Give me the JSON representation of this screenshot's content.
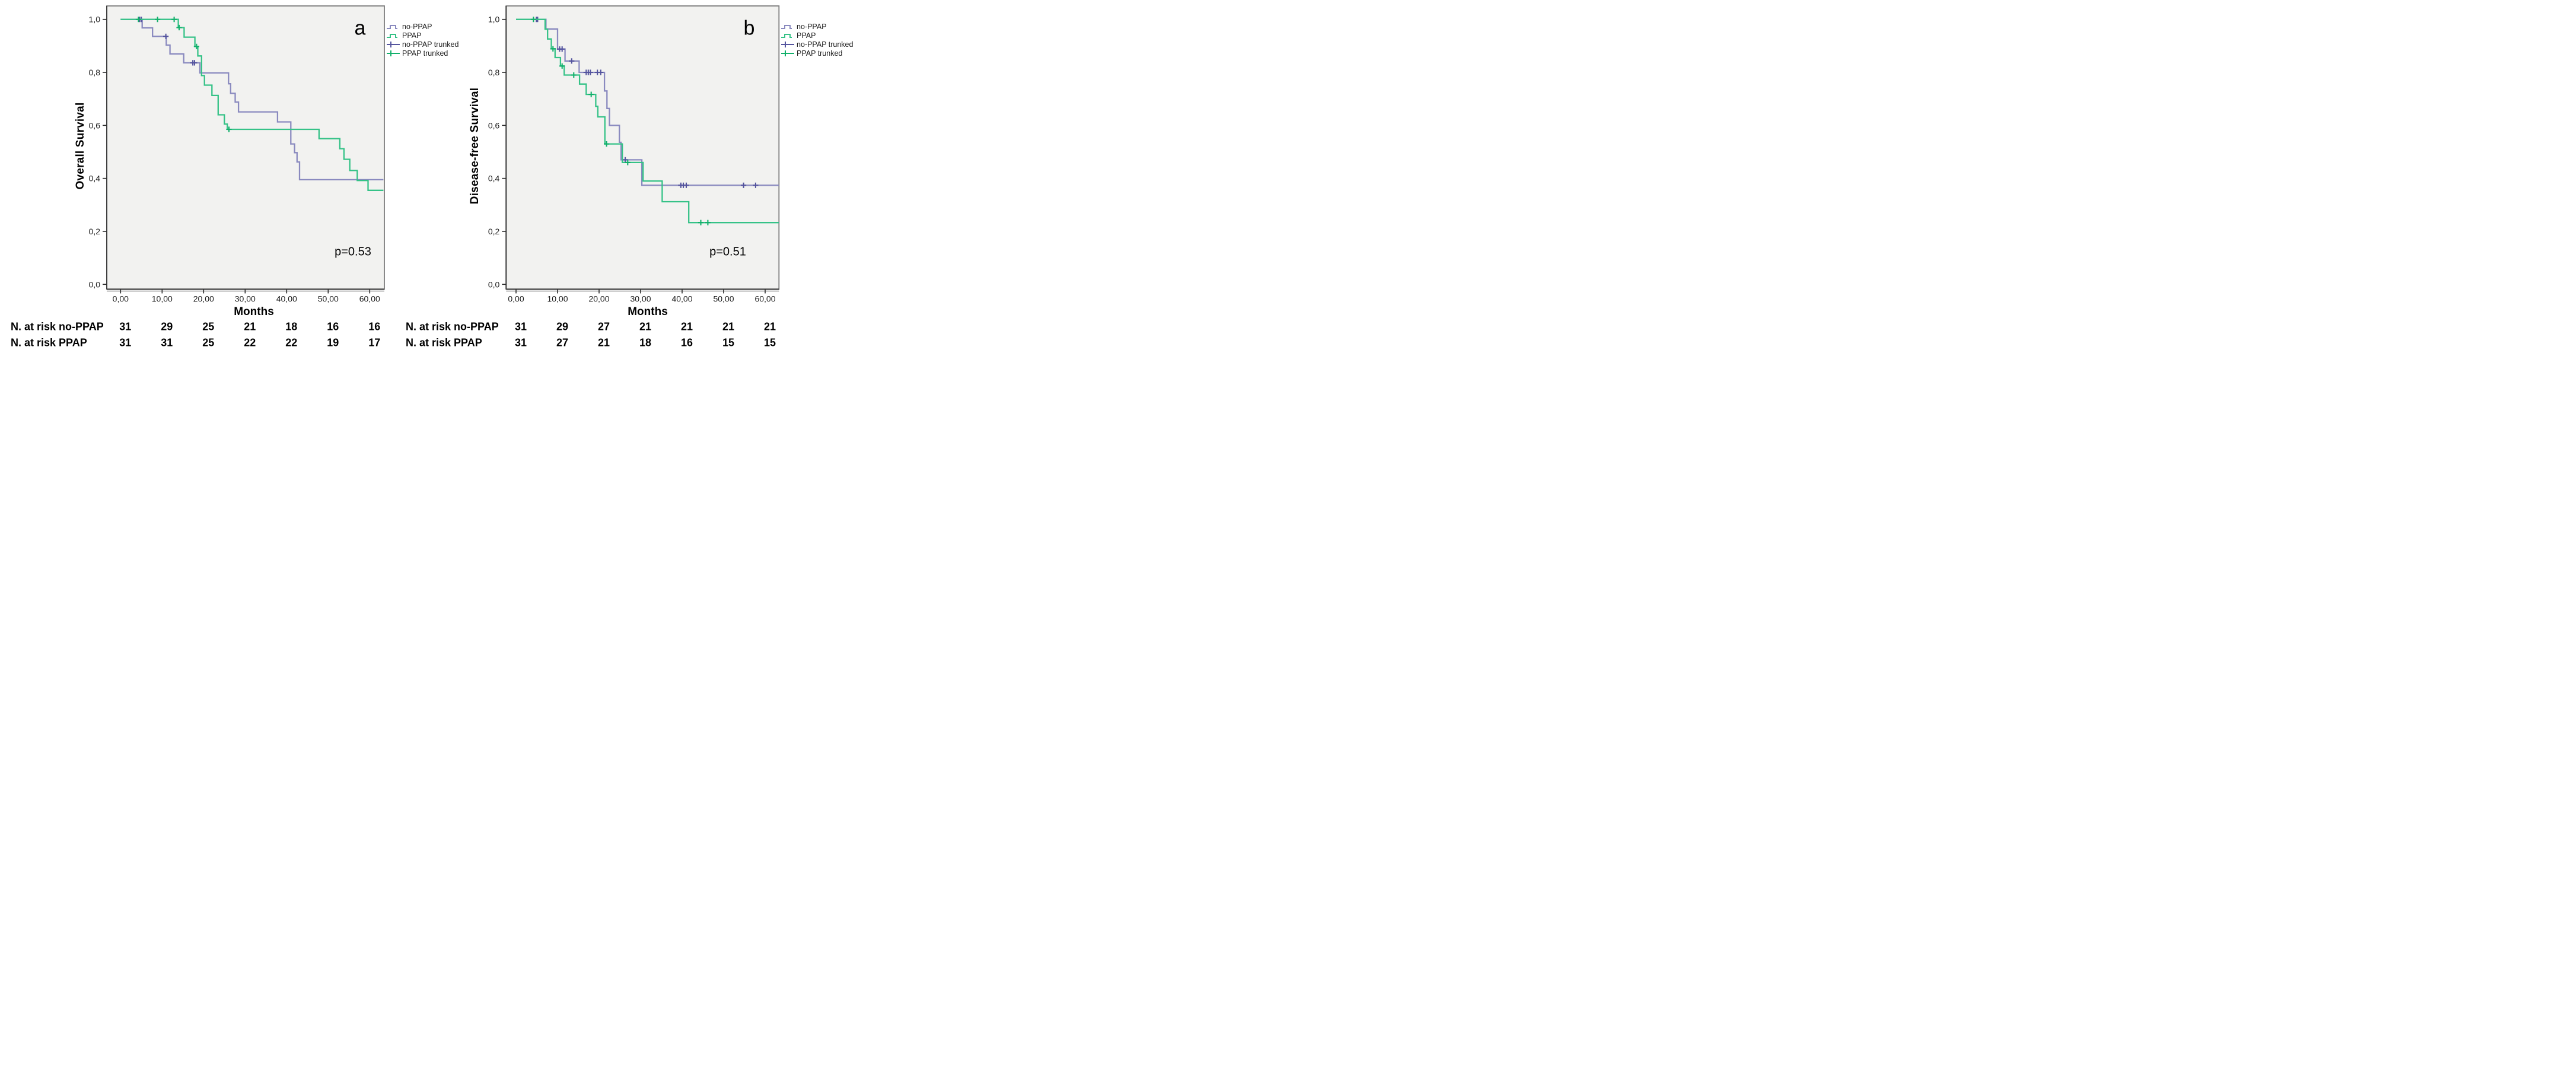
{
  "chart_data": {
    "type": "km_survival_step",
    "description": "Two Kaplan-Meier survival plots with censoring marks and number-at-risk tables",
    "x_axis": {
      "title": "Months",
      "tick_labels": [
        "0,00",
        "10,00",
        "20,00",
        "30,00",
        "40,00",
        "50,00",
        "60,00"
      ],
      "tick_values": [
        0,
        10,
        20,
        30,
        40,
        50,
        60
      ],
      "range": [
        0,
        63.3
      ]
    },
    "y_axis": {
      "tick_labels": [
        "1,0",
        "0,8",
        "0,6",
        "0,4",
        "0,2",
        "0,0"
      ],
      "tick_values": [
        1.0,
        0.8,
        0.6,
        0.4,
        0.2,
        0.0
      ],
      "range": [
        0,
        1.0
      ]
    },
    "colors": {
      "no_ppap": "#8A8ABF",
      "ppap": "#35C287",
      "no_ppap_censor": "#54549E",
      "ppap_censor": "#12B06B",
      "plot_bg": "#F2F2F0",
      "box_border": "#7C7C7C",
      "axis_dark": "#3F3F3F"
    },
    "legend": [
      {
        "label": "no-PPAP",
        "color_key": "no_ppap",
        "symbol": "step"
      },
      {
        "label": "PPAP",
        "color_key": "ppap",
        "symbol": "step"
      },
      {
        "label": "no-PPAP trunked",
        "color_key": "no_ppap_censor",
        "symbol": "plus"
      },
      {
        "label": "PPAP trunked",
        "color_key": "ppap_censor",
        "symbol": "plus"
      }
    ],
    "panels": [
      {
        "letter": "a",
        "y_title": "Overall Survival",
        "p_value": "p=0.53",
        "x_title": "Months",
        "series": [
          {
            "name": "no-PPAP",
            "color_key": "no_ppap",
            "censor_color_key": "no_ppap_censor",
            "steps": [
              [
                0,
                1
              ],
              [
                5.2,
                0.968
              ],
              [
                7.7,
                0.936
              ],
              [
                11.0,
                0.903
              ],
              [
                11.9,
                0.87
              ],
              [
                15.2,
                0.836
              ],
              [
                19.1,
                0.798
              ],
              [
                26.0,
                0.757
              ],
              [
                26.5,
                0.721
              ],
              [
                27.6,
                0.688
              ],
              [
                28.4,
                0.651
              ],
              [
                37.8,
                0.613
              ],
              [
                41.0,
                0.53
              ],
              [
                41.9,
                0.497
              ],
              [
                42.5,
                0.462
              ],
              [
                43.1,
                0.395
              ],
              [
                63.3,
                0.395
              ]
            ],
            "censors": [
              [
                4.6,
                1
              ],
              [
                5.0,
                1
              ],
              [
                10.9,
                0.936
              ],
              [
                17.4,
                0.836
              ],
              [
                17.8,
                0.836
              ]
            ]
          },
          {
            "name": "PPAP",
            "color_key": "ppap",
            "censor_color_key": "ppap_censor",
            "steps": [
              [
                0,
                1
              ],
              [
                13.9,
                0.969
              ],
              [
                15.3,
                0.933
              ],
              [
                17.9,
                0.898
              ],
              [
                18.6,
                0.862
              ],
              [
                19.5,
                0.788
              ],
              [
                20.2,
                0.752
              ],
              [
                22.0,
                0.713
              ],
              [
                23.5,
                0.64
              ],
              [
                25.0,
                0.605
              ],
              [
                25.7,
                0.585
              ],
              [
                47.8,
                0.55
              ],
              [
                52.8,
                0.512
              ],
              [
                53.8,
                0.472
              ],
              [
                55.2,
                0.43
              ],
              [
                57.0,
                0.392
              ],
              [
                59.6,
                0.355
              ],
              [
                63.3,
                0.355
              ]
            ],
            "censors": [
              [
                4.3,
                1
              ],
              [
                8.9,
                1
              ],
              [
                12.9,
                1
              ],
              [
                14.1,
                0.969
              ],
              [
                18.3,
                0.898
              ],
              [
                26.1,
                0.585
              ]
            ]
          }
        ],
        "risk_table": {
          "rows": [
            {
              "label": "N. at risk no-PPAP",
              "values": [
                "31",
                "29",
                "25",
                "21",
                "18",
                "16",
                "16"
              ]
            },
            {
              "label": "N. at risk PPAP",
              "values": [
                "31",
                "31",
                "25",
                "22",
                "22",
                "19",
                "17"
              ]
            }
          ]
        }
      },
      {
        "letter": "b",
        "y_title": "Disease-free Survival",
        "p_value": "p=0.51",
        "x_title": "Months",
        "series": [
          {
            "name": "no-PPAP",
            "color_key": "no_ppap",
            "censor_color_key": "no_ppap_censor",
            "steps": [
              [
                0,
                1
              ],
              [
                7.2,
                0.964
              ],
              [
                10.0,
                0.888
              ],
              [
                11.8,
                0.843
              ],
              [
                15.2,
                0.8
              ],
              [
                21.3,
                0.73
              ],
              [
                21.9,
                0.664
              ],
              [
                22.5,
                0.6
              ],
              [
                24.9,
                0.536
              ],
              [
                25.3,
                0.47
              ],
              [
                30.3,
                0.374
              ],
              [
                63.3,
                0.374
              ]
            ],
            "censors": [
              [
                4.9,
                1
              ],
              [
                5.2,
                1
              ],
              [
                10.5,
                0.888
              ],
              [
                11.1,
                0.888
              ],
              [
                13.4,
                0.843
              ],
              [
                16.9,
                0.8
              ],
              [
                17.4,
                0.8
              ],
              [
                17.9,
                0.8
              ],
              [
                19.6,
                0.8
              ],
              [
                20.4,
                0.8
              ],
              [
                26.3,
                0.47
              ],
              [
                39.7,
                0.374
              ],
              [
                40.3,
                0.374
              ],
              [
                41.0,
                0.374
              ],
              [
                54.8,
                0.374
              ],
              [
                57.7,
                0.374
              ]
            ]
          },
          {
            "name": "PPAP",
            "color_key": "ppap",
            "censor_color_key": "ppap_censor",
            "steps": [
              [
                0,
                1
              ],
              [
                7.0,
                0.963
              ],
              [
                7.6,
                0.926
              ],
              [
                8.5,
                0.889
              ],
              [
                9.4,
                0.856
              ],
              [
                10.7,
                0.824
              ],
              [
                11.6,
                0.79
              ],
              [
                15.3,
                0.756
              ],
              [
                16.9,
                0.717
              ],
              [
                19.2,
                0.672
              ],
              [
                19.7,
                0.632
              ],
              [
                21.4,
                0.53
              ],
              [
                25.6,
                0.46
              ],
              [
                30.6,
                0.39
              ],
              [
                35.2,
                0.312
              ],
              [
                41.6,
                0.233
              ],
              [
                63.3,
                0.233
              ]
            ],
            "censors": [
              [
                4.2,
                1
              ],
              [
                8.9,
                0.889
              ],
              [
                11.1,
                0.824
              ],
              [
                13.9,
                0.79
              ],
              [
                18.1,
                0.717
              ],
              [
                21.8,
                0.53
              ],
              [
                26.9,
                0.46
              ],
              [
                44.5,
                0.233
              ],
              [
                46.2,
                0.233
              ]
            ]
          }
        ],
        "risk_table": {
          "rows": [
            {
              "label": "N. at risk no-PPAP",
              "values": [
                "31",
                "29",
                "27",
                "21",
                "21",
                "21",
                "21"
              ]
            },
            {
              "label": "N. at risk PPAP",
              "values": [
                "31",
                "27",
                "21",
                "18",
                "16",
                "15",
                "15"
              ]
            }
          ]
        }
      }
    ]
  }
}
